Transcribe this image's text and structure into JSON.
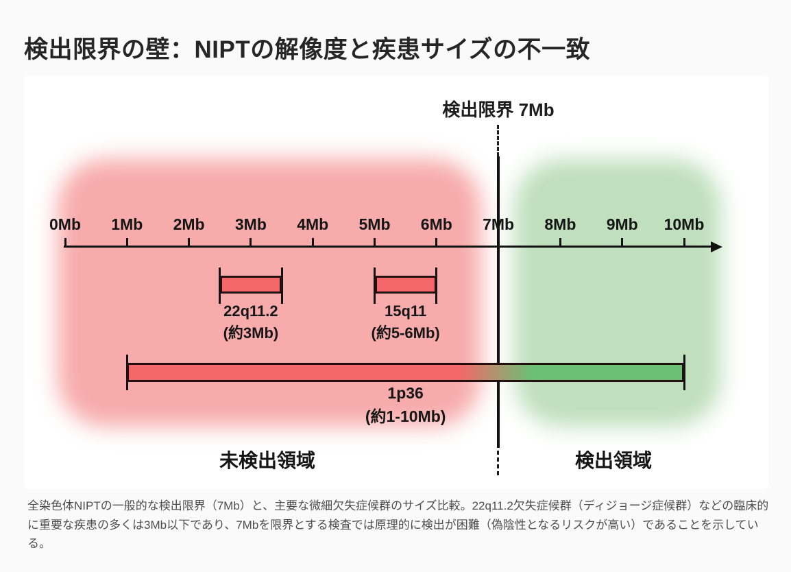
{
  "page": {
    "title": "検出限界の壁：NIPTの解像度と疾患サイズの不一致",
    "caption": "全染色体NIPTの一般的な検出限界（7Mb）と、主要な微細欠失症候群のサイズ比較。22q11.2欠失症候群（ディジョージ症候群）などの臨床的に重要な疾患の多くは3Mb以下であり、7Mbを限界とする検査では原理的に検出が困難（偽陰性となるリスクが高い）であることを示している。"
  },
  "diagram": {
    "limit_label": "検出限界 7Mb",
    "limit_mb": 7,
    "axis": {
      "unit": "Mb",
      "min_mb": 0,
      "max_mb": 10,
      "ticks": [
        "0Mb",
        "1Mb",
        "2Mb",
        "3Mb",
        "4Mb",
        "5Mb",
        "6Mb",
        "7Mb",
        "8Mb",
        "9Mb",
        "10Mb"
      ]
    },
    "regions": {
      "undetected": {
        "label": "未検出領域",
        "color": "#f7abab"
      },
      "detected": {
        "label": "検出領域",
        "color": "#bfdfbd"
      }
    },
    "bars": [
      {
        "name": "22q11.2",
        "size_label": "(約3Mb)",
        "start_mb": 2.5,
        "end_mb": 3.5,
        "row": "upper",
        "colors": [
          "#f4676a"
        ]
      },
      {
        "name": "15q11",
        "size_label": "(約5-6Mb)",
        "start_mb": 5.0,
        "end_mb": 6.0,
        "row": "upper",
        "colors": [
          "#f4676a"
        ]
      },
      {
        "name": "1p36",
        "size_label": "(約1-10Mb)",
        "start_mb": 1.0,
        "end_mb": 10.0,
        "row": "lower",
        "colors": [
          "#f4676a",
          "#6cbf74"
        ]
      }
    ]
  }
}
